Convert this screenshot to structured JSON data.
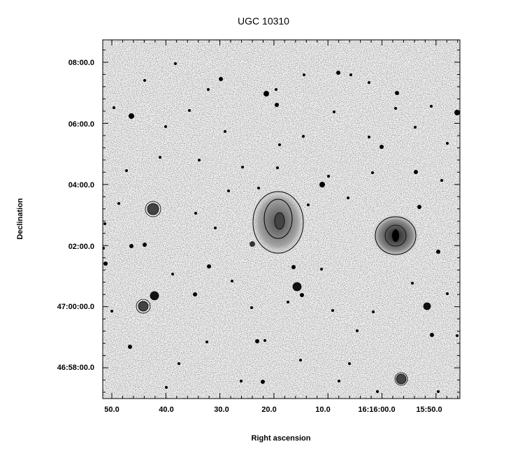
{
  "title": "UGC 10310",
  "xlabel": "Right ascension",
  "ylabel": "Declination",
  "x_tick_labels": [
    "50.0",
    "40.0",
    "30.0",
    "20.0",
    "10.0",
    "16:16:00.0",
    "15:50.0"
  ],
  "y_tick_labels": [
    "08:00.0",
    "06:00.0",
    "04:00.0",
    "02:00.0",
    "47:00:00.0",
    "46:58:00.0"
  ],
  "colors": {
    "background": "#ffffff",
    "frame": "#000000",
    "sky": "#f2f2f2",
    "source": "#111111"
  }
}
